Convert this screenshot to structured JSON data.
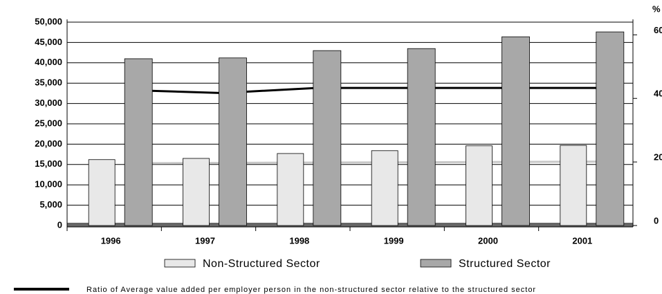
{
  "chart_data": {
    "type": "bar",
    "categories": [
      "1996",
      "1997",
      "1998",
      "1999",
      "2000",
      "2001"
    ],
    "series": [
      {
        "name": "Non-Structured Sector",
        "color": "#e8e8e8",
        "values": [
          16200,
          16500,
          17700,
          18400,
          19600,
          19700
        ]
      },
      {
        "name": "Structured Sector",
        "color": "#a8a8a8",
        "values": [
          41000,
          41200,
          43000,
          43500,
          46400,
          47600
        ]
      },
      {
        "type": "line",
        "axis": "y2",
        "name": "Ratio of Average value added per employer person      in the non-structured sector relative to the structured sector",
        "color": "#000000",
        "values": [
          42.6,
          41.7,
          43.3,
          43.3,
          43.3,
          43.3
        ]
      },
      {
        "type": "line",
        "axis": "y2",
        "color": "#c8c8c8",
        "values": [
          19.6,
          19.7,
          19.8,
          19.9,
          20.0,
          20.1
        ]
      }
    ],
    "ylim": [
      0,
      50000
    ],
    "yticks": [
      {
        "value": 0,
        "label": "0"
      },
      {
        "value": 5000,
        "label": "5,000"
      },
      {
        "value": 10000,
        "label": "10,000"
      },
      {
        "value": 15000,
        "label": "15,000"
      },
      {
        "value": 20000,
        "label": "20,000"
      },
      {
        "value": 25000,
        "label": "25,000"
      },
      {
        "value": 30000,
        "label": "30,000"
      },
      {
        "value": 35000,
        "label": "35,000"
      },
      {
        "value": 40000,
        "label": "40,000"
      },
      {
        "value": 45000,
        "label": "45,000"
      },
      {
        "value": 50000,
        "label": "50,000"
      }
    ],
    "y2lim": [
      0,
      64
    ],
    "y2ticks": [
      0,
      20,
      40,
      60
    ],
    "y2label": "%",
    "grid": true
  }
}
